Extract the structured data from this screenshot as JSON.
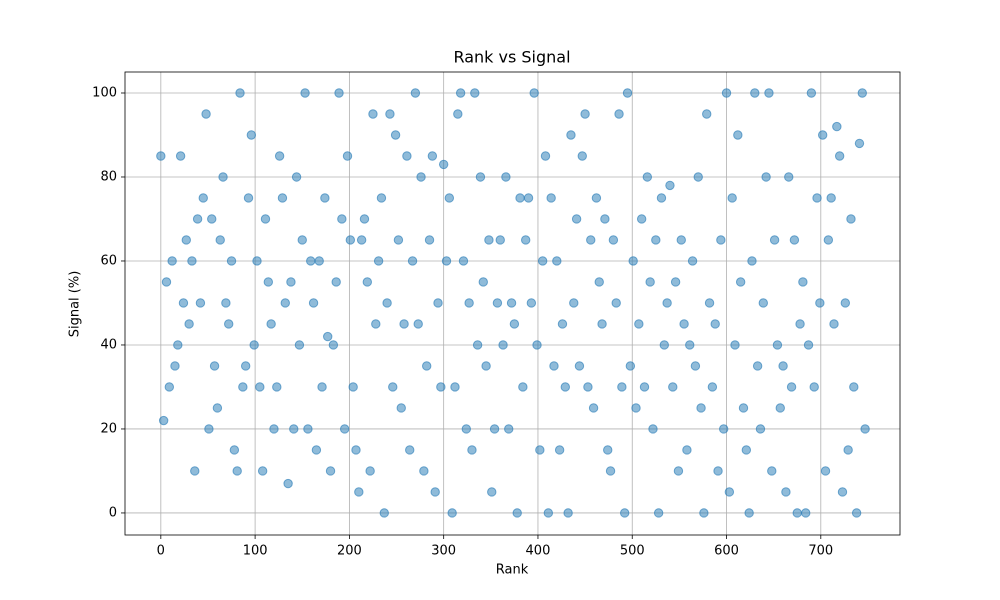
{
  "chart_data": {
    "type": "scatter",
    "title": "Rank vs Signal",
    "x_label": "Rank",
    "y_label": "Signal (%)",
    "color": "#1f77b4",
    "grid": true,
    "xlim": [
      -38,
      784
    ],
    "ylim": [
      -5.25,
      105
    ],
    "xticks": [
      0,
      100,
      200,
      300,
      400,
      500,
      600,
      700
    ],
    "yticks": [
      0,
      20,
      40,
      60,
      80,
      100
    ],
    "x": [
      0,
      3,
      6,
      9,
      12,
      15,
      18,
      21,
      24,
      27,
      30,
      33,
      36,
      39,
      42,
      45,
      48,
      51,
      54,
      57,
      60,
      63,
      66,
      69,
      72,
      75,
      78,
      81,
      84,
      87,
      90,
      93,
      96,
      99,
      102,
      105,
      108,
      111,
      114,
      117,
      120,
      123,
      126,
      129,
      132,
      135,
      138,
      141,
      144,
      147,
      150,
      153,
      156,
      159,
      162,
      165,
      168,
      171,
      174,
      177,
      180,
      183,
      186,
      189,
      192,
      195,
      198,
      201,
      204,
      207,
      210,
      213,
      216,
      219,
      222,
      225,
      228,
      231,
      234,
      237,
      240,
      243,
      246,
      249,
      252,
      255,
      258,
      261,
      264,
      267,
      270,
      273,
      276,
      279,
      282,
      285,
      288,
      291,
      294,
      297,
      300,
      303,
      306,
      309,
      312,
      315,
      318,
      321,
      324,
      327,
      330,
      333,
      336,
      339,
      342,
      345,
      348,
      351,
      354,
      357,
      360,
      363,
      366,
      369,
      372,
      375,
      378,
      381,
      384,
      387,
      390,
      393,
      396,
      399,
      402,
      405,
      408,
      411,
      414,
      417,
      420,
      423,
      426,
      429,
      432,
      435,
      438,
      441,
      444,
      447,
      450,
      453,
      456,
      459,
      462,
      465,
      468,
      471,
      474,
      477,
      480,
      483,
      486,
      489,
      492,
      495,
      498,
      501,
      504,
      507,
      510,
      513,
      516,
      519,
      522,
      525,
      528,
      531,
      534,
      537,
      540,
      543,
      546,
      549,
      552,
      555,
      558,
      561,
      564,
      567,
      570,
      573,
      576,
      579,
      582,
      585,
      588,
      591,
      594,
      597,
      600,
      603,
      606,
      609,
      612,
      615,
      618,
      621,
      624,
      627,
      630,
      633,
      636,
      639,
      642,
      645,
      648,
      651,
      654,
      657,
      660,
      663,
      666,
      669,
      672,
      675,
      678,
      681,
      684,
      687,
      690,
      693,
      696,
      699,
      702,
      705,
      708,
      711,
      714,
      717,
      720,
      723,
      726,
      729,
      732,
      735,
      738,
      741,
      744,
      747
    ],
    "values": [
      85,
      22,
      55,
      30,
      60,
      35,
      40,
      85,
      50,
      65,
      45,
      60,
      10,
      70,
      50,
      75,
      95,
      20,
      70,
      35,
      25,
      65,
      80,
      50,
      45,
      60,
      15,
      10,
      100,
      30,
      35,
      75,
      90,
      40,
      60,
      30,
      10,
      70,
      55,
      45,
      20,
      30,
      85,
      75,
      50,
      7,
      55,
      20,
      80,
      40,
      65,
      100,
      20,
      60,
      50,
      15,
      60,
      30,
      75,
      42,
      10,
      40,
      55,
      100,
      70,
      20,
      85,
      65,
      30,
      15,
      5,
      65,
      70,
      55,
      10,
      95,
      45,
      60,
      75,
      0,
      50,
      95,
      30,
      90,
      65,
      25,
      45,
      85,
      15,
      60,
      100,
      45,
      80,
      10,
      35,
      65,
      85,
      5,
      50,
      30,
      83,
      60,
      75,
      0,
      30,
      95,
      100,
      60,
      20,
      50,
      15,
      100,
      40,
      80,
      55,
      35,
      65,
      5,
      20,
      50,
      65,
      40,
      80,
      20,
      50,
      45,
      0,
      75,
      30,
      65,
      75,
      50,
      100,
      40,
      15,
      60,
      85,
      0,
      75,
      35,
      60,
      15,
      45,
      30,
      0,
      90,
      50,
      70,
      35,
      85,
      95,
      30,
      65,
      25,
      75,
      55,
      45,
      70,
      15,
      10,
      65,
      50,
      95,
      30,
      0,
      100,
      35,
      60,
      25,
      45,
      70,
      30,
      80,
      55,
      20,
      65,
      0,
      75,
      40,
      50,
      78,
      30,
      55,
      10,
      65,
      45,
      15,
      40,
      60,
      35,
      80,
      25,
      0,
      95,
      50,
      30,
      45,
      10,
      65,
      20,
      100,
      5,
      75,
      40,
      90,
      55,
      25,
      15,
      0,
      60,
      100,
      35,
      20,
      50,
      80,
      100,
      10,
      65,
      40,
      25,
      35,
      5,
      80,
      30,
      65,
      0,
      45,
      55,
      0,
      40,
      100,
      30,
      75,
      50,
      90,
      10,
      65,
      75,
      45,
      92,
      85,
      5,
      50,
      15,
      70,
      30,
      0,
      88,
      100,
      20
    ]
  }
}
